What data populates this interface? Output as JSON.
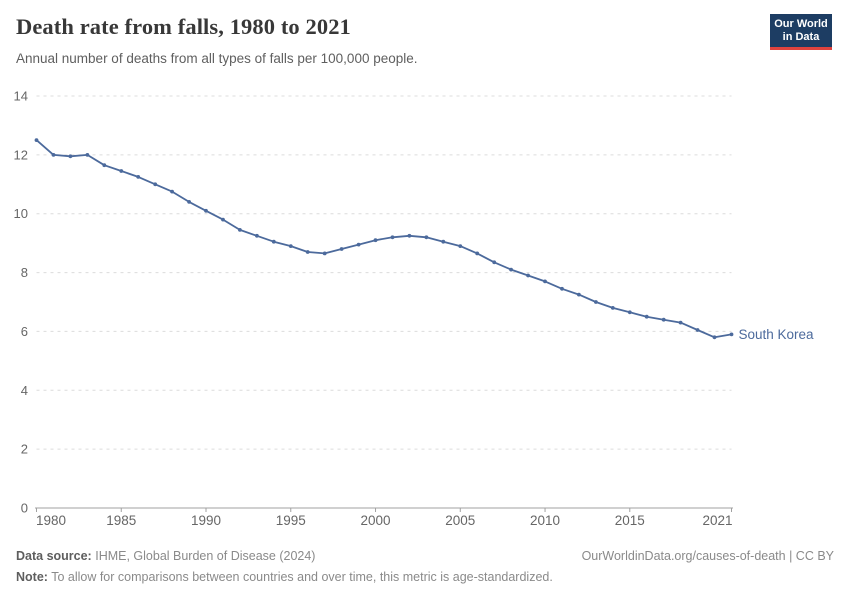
{
  "header": {
    "title": "Death rate from falls, 1980 to 2021",
    "subtitle": "Annual number of deaths from all types of falls per 100,000 people.",
    "logo": {
      "line1": "Our World",
      "line2": "in Data",
      "bg_color": "#1d3d63",
      "accent_color": "#e0433e"
    }
  },
  "chart_data": {
    "type": "line",
    "title": "Death rate from falls, 1980 to 2021",
    "subtitle": "Annual number of deaths from all types of falls per 100,000 people.",
    "xlabel": "",
    "ylabel": "",
    "xlim": [
      1980,
      2021
    ],
    "ylim": [
      0,
      14
    ],
    "grid": "horizontal-dashed",
    "legend_position": "end-of-line",
    "xticks": [
      1980,
      1985,
      1990,
      1995,
      2000,
      2005,
      2010,
      2015,
      2021
    ],
    "yticks": [
      0,
      2,
      4,
      6,
      8,
      10,
      12,
      14
    ],
    "x": [
      1980,
      1981,
      1982,
      1983,
      1984,
      1985,
      1986,
      1987,
      1988,
      1989,
      1990,
      1991,
      1992,
      1993,
      1994,
      1995,
      1996,
      1997,
      1998,
      1999,
      2000,
      2001,
      2002,
      2003,
      2004,
      2005,
      2006,
      2007,
      2008,
      2009,
      2010,
      2011,
      2012,
      2013,
      2014,
      2015,
      2016,
      2017,
      2018,
      2019,
      2020,
      2021
    ],
    "series": [
      {
        "name": "South Korea",
        "color": "#4c6a9c",
        "values": [
          12.5,
          12.0,
          11.95,
          12.0,
          11.65,
          11.45,
          11.25,
          11.0,
          10.75,
          10.4,
          10.1,
          9.8,
          9.45,
          9.25,
          9.05,
          8.9,
          8.7,
          8.65,
          8.8,
          8.95,
          9.1,
          9.2,
          9.25,
          9.2,
          9.05,
          8.9,
          8.65,
          8.35,
          8.1,
          7.9,
          7.7,
          7.45,
          7.25,
          7.0,
          6.8,
          6.65,
          6.5,
          6.4,
          6.3,
          6.05,
          5.8,
          5.9
        ]
      }
    ],
    "colors": {
      "gridline": "#dcdcdc",
      "axis": "#a1a1a1",
      "tick_label": "#666666"
    }
  },
  "footer": {
    "source_label": "Data source:",
    "source_text": "IHME, Global Burden of Disease (2024)",
    "link_text": "OurWorldinData.org/causes-of-death | CC BY",
    "note_label": "Note:",
    "note_text": "To allow for comparisons between countries and over time, this metric is age-standardized."
  }
}
